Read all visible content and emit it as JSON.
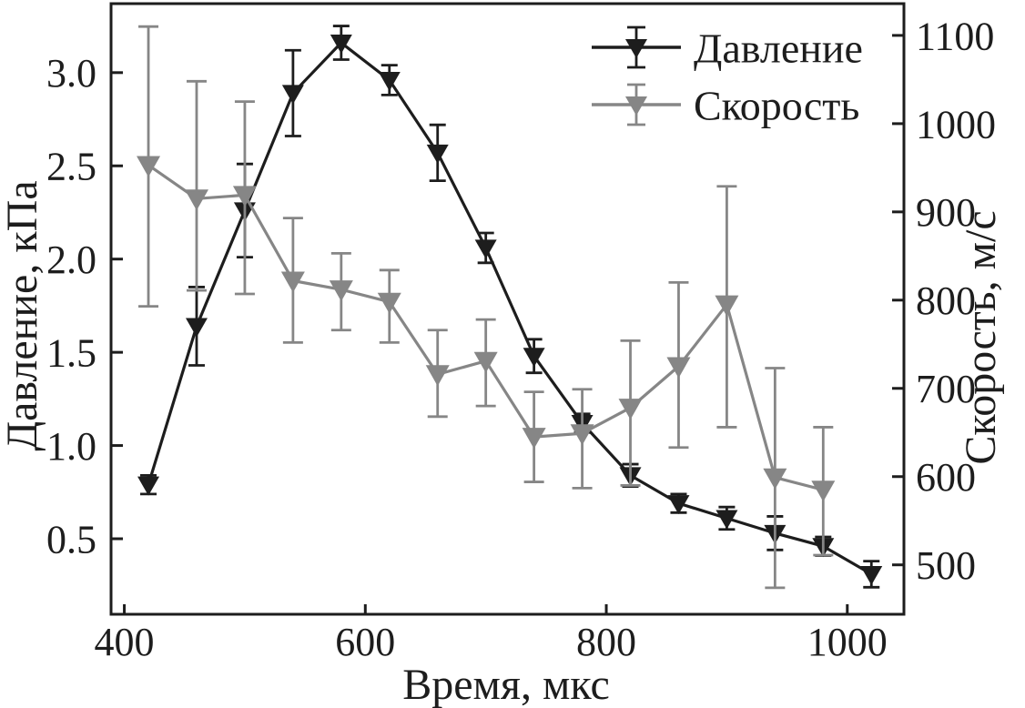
{
  "figure": {
    "xlabel": "Время, мкс",
    "ylabel_left": "Давление, кПа",
    "ylabel_right": "Скорость, м/с"
  },
  "colors": {
    "pressure": "#1d1d1d",
    "velocity": "#868686",
    "frame": "#1d1d1d",
    "background": "#ffffff"
  },
  "chart_data": {
    "type": "line",
    "title": "",
    "xlabel": "Время, мкс",
    "ylabel_left": "Давление, кПа",
    "ylabel_right": "Скорость, м/с",
    "grid": false,
    "legend_position": "top-right",
    "xlim": [
      389,
      1047
    ],
    "ylim_left": [
      0.095,
      3.37
    ],
    "ylim_right": [
      444,
      1136
    ],
    "x_ticks": [
      400,
      600,
      800,
      1000
    ],
    "y_ticks_left": [
      "0.5",
      "1.0",
      "1.5",
      "2.0",
      "2.5",
      "3.0"
    ],
    "y_ticks_left_values": [
      0.5,
      1.0,
      1.5,
      2.0,
      2.5,
      3.0
    ],
    "y_ticks_right": [
      500,
      600,
      700,
      800,
      900,
      1000,
      1100
    ],
    "series": [
      {
        "id": "pressure",
        "name": "Давление",
        "axis": "left",
        "marker": "triangle-down",
        "color": "#1d1d1d",
        "x": [
          420,
          460,
          500,
          540,
          580,
          620,
          660,
          700,
          740,
          780,
          820,
          860,
          900,
          940,
          980,
          1020
        ],
        "y": [
          0.79,
          1.64,
          2.26,
          2.89,
          3.16,
          2.96,
          2.57,
          2.06,
          1.48,
          1.12,
          0.84,
          0.69,
          0.61,
          0.53,
          0.46,
          0.31
        ],
        "err_plus": [
          0.05,
          0.21,
          0.25,
          0.23,
          0.09,
          0.08,
          0.15,
          0.08,
          0.09,
          0.05,
          0.06,
          0.05,
          0.06,
          0.09,
          0.05,
          0.07
        ],
        "err_minus": [
          0.05,
          0.21,
          0.25,
          0.23,
          0.09,
          0.08,
          0.15,
          0.08,
          0.09,
          0.05,
          0.06,
          0.05,
          0.06,
          0.09,
          0.05,
          0.07
        ]
      },
      {
        "id": "velocity",
        "name": "Скорость",
        "axis": "right",
        "marker": "triangle-down",
        "color": "#868686",
        "x": [
          420,
          460,
          500,
          540,
          580,
          620,
          660,
          700,
          740,
          780,
          820,
          860,
          900,
          940,
          980
        ],
        "y": [
          953,
          915,
          919,
          822,
          812,
          798,
          716,
          731,
          645,
          649,
          678,
          725,
          795,
          599,
          585
        ],
        "err_plus": [
          157,
          133,
          106,
          71,
          41,
          36,
          50,
          47,
          51,
          50,
          76,
          95,
          134,
          124,
          71
        ],
        "err_minus": [
          160,
          104,
          112,
          70,
          46,
          46,
          48,
          51,
          51,
          62,
          88,
          92,
          139,
          125,
          74
        ]
      }
    ]
  }
}
